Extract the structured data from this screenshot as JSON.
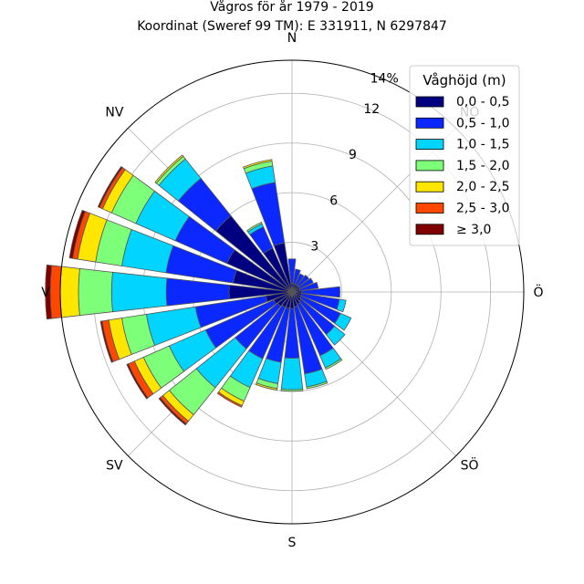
{
  "chart_data": {
    "type": "windrose",
    "title": "Vågros för år 1979 - 2019",
    "subtitle": "Koordinat (Sweref 99 TM): E 331911, N 6297847",
    "radial_unit": "%",
    "rlim": [
      0,
      14
    ],
    "radial_ticks": [
      {
        "value": 3,
        "label": "3"
      },
      {
        "value": 6,
        "label": "6"
      },
      {
        "value": 9,
        "label": "9"
      },
      {
        "value": 12,
        "label": "12"
      },
      {
        "value": 14,
        "label": "14%"
      }
    ],
    "direction_labels": [
      {
        "angle": 0,
        "label": "N"
      },
      {
        "angle": 45,
        "label": "NO"
      },
      {
        "angle": 90,
        "label": "Ö"
      },
      {
        "angle": 135,
        "label": "SÖ"
      },
      {
        "angle": 180,
        "label": "S"
      },
      {
        "angle": 225,
        "label": "SV"
      },
      {
        "angle": 270,
        "label": "V"
      },
      {
        "angle": 315,
        "label": "NV"
      }
    ],
    "legend": {
      "title": "Våghöjd (m)",
      "placement": "top-right",
      "bins": [
        {
          "label": "0,0 - 0,5",
          "color": "#000080"
        },
        {
          "label": "0,5 - 1,0",
          "color": "#0a28ff"
        },
        {
          "label": "1,0 - 1,5",
          "color": "#00d4ff"
        },
        {
          "label": "1,5 - 2,0",
          "color": "#7dff7a"
        },
        {
          "label": "2,0 - 2,5",
          "color": "#ffe600"
        },
        {
          "label": "2,5 - 3,0",
          "color": "#ff4700"
        },
        {
          "label": "≥ 3,0",
          "color": "#800000"
        }
      ]
    },
    "sectors": [
      {
        "direction": 0,
        "cumulative": [
          0.5,
          2.0
        ]
      },
      {
        "direction": 15,
        "cumulative": [
          0.5,
          1.4
        ]
      },
      {
        "direction": 30,
        "cumulative": [
          0.5,
          1.2
        ]
      },
      {
        "direction": 45,
        "cumulative": [
          0.5,
          1.3
        ]
      },
      {
        "direction": 60,
        "cumulative": [
          0.5,
          1.4
        ]
      },
      {
        "direction": 75,
        "cumulative": [
          0.5,
          1.6
        ]
      },
      {
        "direction": 90,
        "cumulative": [
          0.6,
          2.9
        ]
      },
      {
        "direction": 105,
        "cumulative": [
          0.6,
          2.9,
          3.3
        ]
      },
      {
        "direction": 120,
        "cumulative": [
          0.6,
          3.2,
          3.9
        ]
      },
      {
        "direction": 135,
        "cumulative": [
          0.7,
          3.3,
          4.1
        ]
      },
      {
        "direction": 150,
        "cumulative": [
          0.8,
          4.2,
          5.0,
          5.1
        ]
      },
      {
        "direction": 165,
        "cumulative": [
          0.9,
          5.0,
          5.8,
          5.9
        ]
      },
      {
        "direction": 180,
        "cumulative": [
          1.0,
          4.0,
          5.9,
          6.0
        ]
      },
      {
        "direction": 195,
        "cumulative": [
          1.0,
          4.3,
          5.6,
          5.9,
          6.0
        ]
      },
      {
        "direction": 210,
        "cumulative": [
          1.0,
          4.4,
          6.3,
          7.2,
          7.5,
          7.6
        ]
      },
      {
        "direction": 225,
        "cumulative": [
          1.1,
          4.4,
          7.4,
          9.5,
          10.0,
          10.2,
          10.3
        ]
      },
      {
        "direction": 240,
        "cumulative": [
          1.2,
          5.7,
          8.1,
          9.8,
          10.4,
          10.8,
          10.9
        ]
      },
      {
        "direction": 255,
        "cumulative": [
          1.6,
          5.9,
          8.9,
          10.4,
          11.2,
          11.6,
          11.7
        ]
      },
      {
        "direction": 270,
        "cumulative": [
          3.8,
          7.6,
          10.9,
          12.9,
          14.0,
          14.6,
          14.9
        ]
      },
      {
        "direction": 285,
        "cumulative": [
          3.6,
          7.7,
          10.4,
          12.0,
          13.1,
          13.4,
          13.6
        ]
      },
      {
        "direction": 300,
        "cumulative": [
          4.3,
          7.7,
          10.3,
          11.9,
          12.5,
          12.7,
          12.8
        ]
      },
      {
        "direction": 315,
        "cumulative": [
          5.9,
          8.8,
          10.3,
          10.5,
          10.6
        ]
      },
      {
        "direction": 330,
        "cumulative": [
          2.9,
          4.3,
          4.5,
          4.6
        ]
      },
      {
        "direction": 345,
        "cumulative": [
          3.0,
          6.7,
          7.7,
          8.0,
          8.1
        ]
      }
    ]
  }
}
